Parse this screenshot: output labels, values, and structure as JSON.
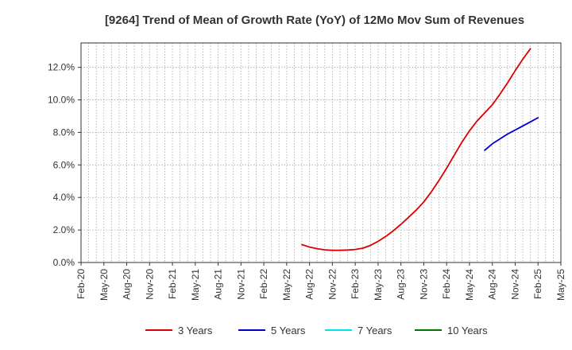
{
  "chart_data": {
    "type": "line",
    "title": "[9264]  Trend of Mean of Growth Rate (YoY) of 12Mo Mov Sum of Revenues",
    "xlabel": "",
    "ylabel": "",
    "x_tick_labels": [
      "Feb-20",
      "May-20",
      "Aug-20",
      "Nov-20",
      "Feb-21",
      "May-21",
      "Aug-21",
      "Nov-21",
      "Feb-22",
      "May-22",
      "Aug-22",
      "Nov-22",
      "Feb-23",
      "May-23",
      "Aug-23",
      "Nov-23",
      "Feb-24",
      "May-24",
      "Aug-24",
      "Nov-24",
      "Feb-25",
      "May-25"
    ],
    "y_ticks": [
      0,
      2,
      4,
      6,
      8,
      10,
      12
    ],
    "y_tick_labels": [
      "0.0%",
      "2.0%",
      "4.0%",
      "6.0%",
      "8.0%",
      "10.0%",
      "12.0%"
    ],
    "ylim": [
      0,
      13.5
    ],
    "grid": true,
    "legend_position": "bottom",
    "series": [
      {
        "name": "3 Years",
        "color": "#dd0000",
        "points": [
          {
            "x": "Jul-22",
            "y": 1.1
          },
          {
            "x": "Aug-22",
            "y": 0.95
          },
          {
            "x": "Sep-22",
            "y": 0.85
          },
          {
            "x": "Oct-22",
            "y": 0.78
          },
          {
            "x": "Nov-22",
            "y": 0.75
          },
          {
            "x": "Dec-22",
            "y": 0.75
          },
          {
            "x": "Jan-23",
            "y": 0.77
          },
          {
            "x": "Feb-23",
            "y": 0.8
          },
          {
            "x": "Mar-23",
            "y": 0.88
          },
          {
            "x": "Apr-23",
            "y": 1.05
          },
          {
            "x": "May-23",
            "y": 1.3
          },
          {
            "x": "Jun-23",
            "y": 1.6
          },
          {
            "x": "Jul-23",
            "y": 1.95
          },
          {
            "x": "Aug-23",
            "y": 2.35
          },
          {
            "x": "Sep-23",
            "y": 2.78
          },
          {
            "x": "Oct-23",
            "y": 3.22
          },
          {
            "x": "Nov-23",
            "y": 3.72
          },
          {
            "x": "Dec-23",
            "y": 4.35
          },
          {
            "x": "Jan-24",
            "y": 5.05
          },
          {
            "x": "Feb-24",
            "y": 5.8
          },
          {
            "x": "Mar-24",
            "y": 6.6
          },
          {
            "x": "Apr-24",
            "y": 7.4
          },
          {
            "x": "May-24",
            "y": 8.1
          },
          {
            "x": "Jun-24",
            "y": 8.7
          },
          {
            "x": "Jul-24",
            "y": 9.2
          },
          {
            "x": "Aug-24",
            "y": 9.7
          },
          {
            "x": "Sep-24",
            "y": 10.35
          },
          {
            "x": "Oct-24",
            "y": 11.05
          },
          {
            "x": "Nov-24",
            "y": 11.8
          },
          {
            "x": "Dec-24",
            "y": 12.5
          },
          {
            "x": "Jan-25",
            "y": 13.15
          }
        ]
      },
      {
        "name": "5 Years",
        "color": "#0000cc",
        "points": [
          {
            "x": "Jul-24",
            "y": 6.9
          },
          {
            "x": "Aug-24",
            "y": 7.3
          },
          {
            "x": "Sep-24",
            "y": 7.6
          },
          {
            "x": "Oct-24",
            "y": 7.9
          },
          {
            "x": "Nov-24",
            "y": 8.15
          },
          {
            "x": "Dec-24",
            "y": 8.4
          },
          {
            "x": "Jan-25",
            "y": 8.65
          },
          {
            "x": "Feb-25",
            "y": 8.9
          }
        ]
      },
      {
        "name": "7 Years",
        "color": "#00e5ee",
        "points": []
      },
      {
        "name": "10 Years",
        "color": "#007700",
        "points": []
      }
    ]
  }
}
